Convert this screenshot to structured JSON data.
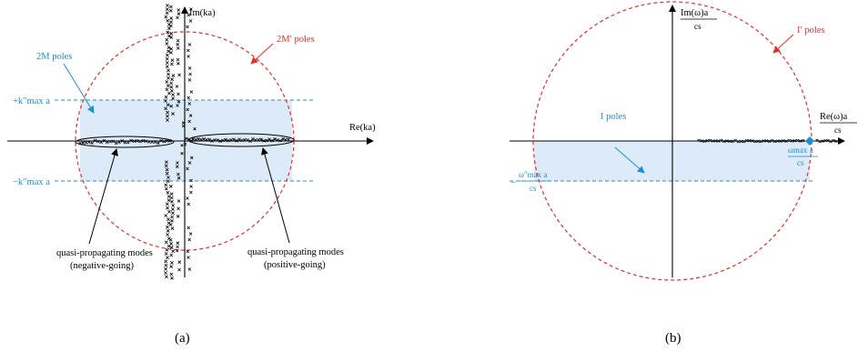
{
  "panel_a": {
    "caption": "(a)",
    "axis_y_label": "Im(ka)",
    "axis_x_label": "Re(ka)",
    "label_2m_poles": "2M poles",
    "label_2mprime_poles": "2M′ poles",
    "label_plus_k": "+k″max a",
    "label_minus_k": "−k″max a",
    "label_neg_modes_line1": "quasi-propagating modes",
    "label_neg_modes_line2": "(negative-going)",
    "label_pos_modes_line1": "quasi-propagating modes",
    "label_pos_modes_line2": "(positive-going)",
    "colors": {
      "band": "#dcebf7",
      "blue": "#1f8fcf",
      "red": "#e53030",
      "axis": "#000000"
    }
  },
  "panel_b": {
    "caption": "(b)",
    "axis_y_label_top": "Im(ω)a",
    "axis_y_label_bottom": "cs",
    "axis_x_label_top": "Re(ω)a",
    "axis_x_label_bottom": "cs",
    "label_i_poles": "I poles",
    "label_iprime_poles": "I′ poles",
    "label_omega_neg_top": "ω″max a",
    "label_omega_neg_bottom": "cs",
    "label_omega_neg_prefix": "−",
    "label_omega_pos_top": "ωmax a",
    "label_omega_pos_bottom": "cs",
    "colors": {
      "band": "#dcebf7",
      "blue": "#1f8fcf",
      "red": "#e53030",
      "marker": "#1f8fcf"
    }
  }
}
